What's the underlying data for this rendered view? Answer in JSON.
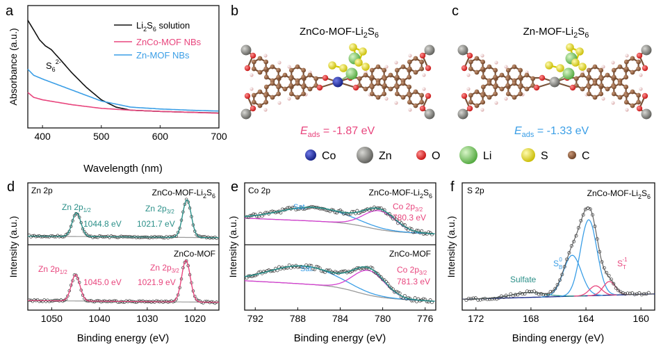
{
  "colors": {
    "black": "#111111",
    "pink": "#e8457d",
    "blue": "#3a9ee6",
    "teal": "#2a8f88",
    "navy": "#1a2a8a",
    "grey_base": "#9a9a9a",
    "marker": "#333333",
    "atom_co": "#1c2fa8",
    "atom_zn": "#7d7d78",
    "atom_o": "#e02424",
    "atom_li": "#7fd26a",
    "atom_s": "#efe31a",
    "atom_c": "#8b5a3c",
    "atom_h": "#f0c8c8"
  },
  "panel_a": {
    "label": "a",
    "chart_data": {
      "type": "line",
      "title": "",
      "xlabel": "Wavelength (nm)",
      "ylabel": "Absorbance (a.u.)",
      "xlim": [
        375,
        700
      ],
      "xticks": [
        "400",
        "500",
        "600",
        "700"
      ],
      "annotation": {
        "base": "S",
        "sub": "6",
        "sup": "2-"
      },
      "legend": [
        {
          "base": "Li",
          "sub1": "2",
          "mid": "S",
          "sub2": "6",
          "tail": " solution",
          "color": "black"
        },
        {
          "base": "ZnCo-MOF NBs",
          "color": "pink"
        },
        {
          "base": "Zn-MOF NBs",
          "color": "blue"
        }
      ],
      "series": [
        {
          "name": "Li2S6 solution",
          "color": "black",
          "x": [
            375,
            385,
            395,
            405,
            415,
            430,
            450,
            475,
            500,
            525,
            550,
            600,
            650,
            700
          ],
          "y": [
            0.88,
            0.8,
            0.72,
            0.67,
            0.64,
            0.56,
            0.45,
            0.33,
            0.23,
            0.17,
            0.145,
            0.135,
            0.128,
            0.122
          ]
        },
        {
          "name": "ZnCo-MOF NBs",
          "color": "pink",
          "x": [
            375,
            385,
            400,
            450,
            500,
            550,
            600,
            650,
            700
          ],
          "y": [
            0.29,
            0.25,
            0.23,
            0.19,
            0.16,
            0.145,
            0.135,
            0.128,
            0.12
          ]
        },
        {
          "name": "Zn-MOF NBs",
          "color": "blue",
          "x": [
            375,
            385,
            400,
            450,
            500,
            550,
            600,
            650,
            700
          ],
          "y": [
            0.48,
            0.43,
            0.4,
            0.31,
            0.22,
            0.17,
            0.155,
            0.145,
            0.138
          ]
        }
      ]
    }
  },
  "panel_b": {
    "label": "b",
    "title": {
      "base": "ZnCo-MOF-Li",
      "sub1": "2",
      "mid": "S",
      "sub2": "6"
    },
    "energy": {
      "e": "E",
      "sub": "ads",
      "value": " = -1.87 eV"
    }
  },
  "panel_c": {
    "label": "c",
    "title": {
      "base": "Zn-MOF-Li",
      "sub1": "2",
      "mid": "S",
      "sub2": "6"
    },
    "energy": {
      "e": "E",
      "sub": "ads",
      "value": " = -1.33 eV"
    }
  },
  "atom_legend": [
    {
      "symbol": "Co",
      "color": "atom_co",
      "r": 8
    },
    {
      "symbol": "Zn",
      "color": "atom_zn",
      "r": 12
    },
    {
      "symbol": "O",
      "color": "atom_o",
      "r": 7
    },
    {
      "symbol": "Li",
      "color": "atom_li",
      "r": 13
    },
    {
      "symbol": "S",
      "color": "atom_s",
      "r": 10
    },
    {
      "symbol": "C",
      "color": "atom_c",
      "r": 6
    }
  ],
  "panel_d": {
    "label": "d",
    "corner": "Zn 2p",
    "chart_data": {
      "type": "scatter",
      "xlabel": "Binding energy (eV)",
      "ylabel": "Intensity (a.u.)",
      "xlim": [
        1055,
        1015
      ],
      "xticks": [
        "1050",
        "1040",
        "1030",
        "1020"
      ],
      "subplots": [
        {
          "sample": {
            "base": "ZnCo-MOF-Li",
            "sub1": "2",
            "mid": "S",
            "sub2": "6"
          },
          "peaks": [
            {
              "center": 1044.8,
              "height": 0.6,
              "width": 0.9,
              "label": {
                "base": "Zn 2p",
                "sub": "1/2"
              },
              "value": "1044.8 eV"
            },
            {
              "center": 1021.7,
              "height": 0.95,
              "width": 0.9,
              "label": {
                "base": "Zn 2p",
                "sub": "3/2"
              },
              "value": "1021.7 eV"
            }
          ],
          "label_color": "teal"
        },
        {
          "sample": {
            "base": "ZnCo-MOF"
          },
          "peaks": [
            {
              "center": 1045.0,
              "height": 0.6,
              "width": 0.9,
              "label": {
                "base": "Zn 2p",
                "sub": "1/2"
              },
              "value": "1045.0 eV"
            },
            {
              "center": 1021.9,
              "height": 0.95,
              "width": 0.9,
              "label": {
                "base": "Zn 2p",
                "sub": "3/2"
              },
              "value": "1021.9 eV"
            }
          ],
          "label_color": "pink"
        }
      ]
    }
  },
  "panel_e": {
    "label": "e",
    "corner": "Co 2p",
    "chart_data": {
      "type": "scatter",
      "xlabel": "Binding energy (eV)",
      "ylabel": "Intensity (a.u.)",
      "xlim": [
        793,
        775
      ],
      "xticks": [
        "792",
        "788",
        "784",
        "780",
        "776"
      ],
      "subplots": [
        {
          "sample": {
            "base": "ZnCo-MOF-Li",
            "sub1": "2",
            "mid": "S",
            "sub2": "6"
          },
          "main": {
            "center": 780.3,
            "label": {
              "base": "Co 2p",
              "sub": "3/2"
            },
            "value": "780.3 eV"
          },
          "sat": {
            "center": 785.0,
            "label": "Sat."
          }
        },
        {
          "sample": {
            "base": "ZnCo-MOF"
          },
          "main": {
            "center": 781.3,
            "label": {
              "base": "Co 2p",
              "sub": "3/2"
            },
            "value": "781.3 eV"
          },
          "sat": {
            "center": 786.0,
            "label": "Sat."
          }
        }
      ]
    }
  },
  "panel_f": {
    "label": "f",
    "corner": "S 2p",
    "chart_data": {
      "type": "scatter",
      "xlabel": "Binding energy (eV)",
      "ylabel": "Intensity (a.u.)",
      "xlim": [
        173,
        159
      ],
      "xticks": [
        "172",
        "168",
        "164",
        "160"
      ],
      "sample": {
        "base": "ZnCo-MOF-Li",
        "sub1": "2",
        "mid": "S",
        "sub2": "6"
      },
      "components": [
        {
          "name": "sulfate",
          "center": 168.2,
          "height": 0.05,
          "width": 1.2,
          "color": "teal"
        },
        {
          "name": "sb0-a",
          "center": 165.0,
          "height": 0.42,
          "width": 0.65,
          "color": "blue"
        },
        {
          "name": "sb0-b",
          "center": 163.8,
          "height": 0.78,
          "width": 0.6,
          "color": "blue"
        },
        {
          "name": "st-1-a",
          "center": 163.3,
          "height": 0.1,
          "width": 0.45,
          "color": "pink"
        },
        {
          "name": "st-1-b",
          "center": 162.3,
          "height": 0.14,
          "width": 0.45,
          "color": "pink"
        }
      ],
      "labels": [
        {
          "text": "Sulfate",
          "color": "teal"
        },
        {
          "base": "S",
          "sub": "B",
          "sup": "0",
          "color": "blue"
        },
        {
          "base": "S",
          "sub": "T",
          "sup": "-1",
          "color": "pink"
        }
      ]
    }
  }
}
